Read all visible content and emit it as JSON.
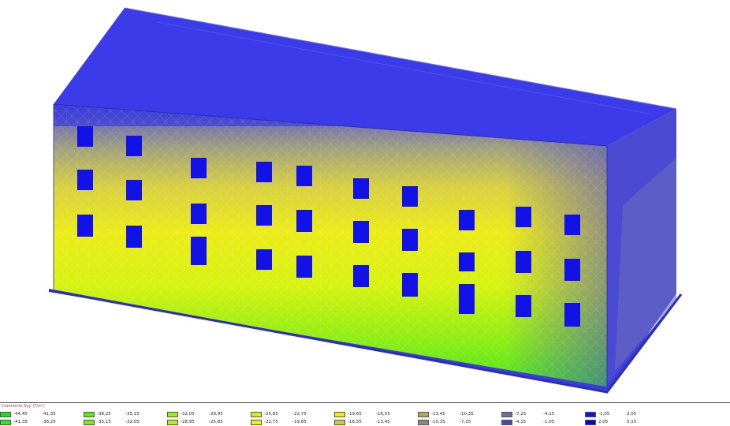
{
  "legend": {
    "title": "Contrainte Nyy (T/m²)",
    "rows": [
      [
        {
          "label": "-44,45",
          "color": "#1ee01e"
        },
        {
          "label": "-41,35",
          "color": ""
        },
        {
          "label": "-38,25",
          "color": "#5ce817"
        },
        {
          "label": "-35,15",
          "color": ""
        },
        {
          "label": "-32,05",
          "color": "#9aef12"
        },
        {
          "label": "-28,95",
          "color": ""
        },
        {
          "label": "-25,85",
          "color": "#d5f20a"
        },
        {
          "label": "-22,75",
          "color": ""
        },
        {
          "label": "-19,65",
          "color": "#eded10"
        },
        {
          "label": "-16,55",
          "color": ""
        },
        {
          "label": "-13,45",
          "color": "#b0a85a"
        },
        {
          "label": "-10,35",
          "color": ""
        },
        {
          "label": "-7,25",
          "color": "#6e6e96"
        },
        {
          "label": "-4,15",
          "color": ""
        },
        {
          "label": "-1,05",
          "color": "#1414e0"
        },
        {
          "label": "2,05",
          "color": ""
        }
      ],
      [
        {
          "label": "-41,35",
          "color": "#2de426"
        },
        {
          "label": "-38,25",
          "color": ""
        },
        {
          "label": "-35,15",
          "color": "#7aeb15"
        },
        {
          "label": "-32,05",
          "color": ""
        },
        {
          "label": "-28,95",
          "color": "#b7f010"
        },
        {
          "label": "-25,85",
          "color": ""
        },
        {
          "label": "-22,75",
          "color": "#e8f010"
        },
        {
          "label": "-19,65",
          "color": ""
        },
        {
          "label": "-16,55",
          "color": "#cfc83a"
        },
        {
          "label": "-13,45",
          "color": ""
        },
        {
          "label": "-10,35",
          "color": "#8a8a78"
        },
        {
          "label": "-7,25",
          "color": ""
        },
        {
          "label": "-4,15",
          "color": "#4848b4"
        },
        {
          "label": "-1,05",
          "color": ""
        },
        {
          "label": "2,05",
          "color": "#0000d8"
        },
        {
          "label": "5,15",
          "color": ""
        }
      ]
    ]
  }
}
